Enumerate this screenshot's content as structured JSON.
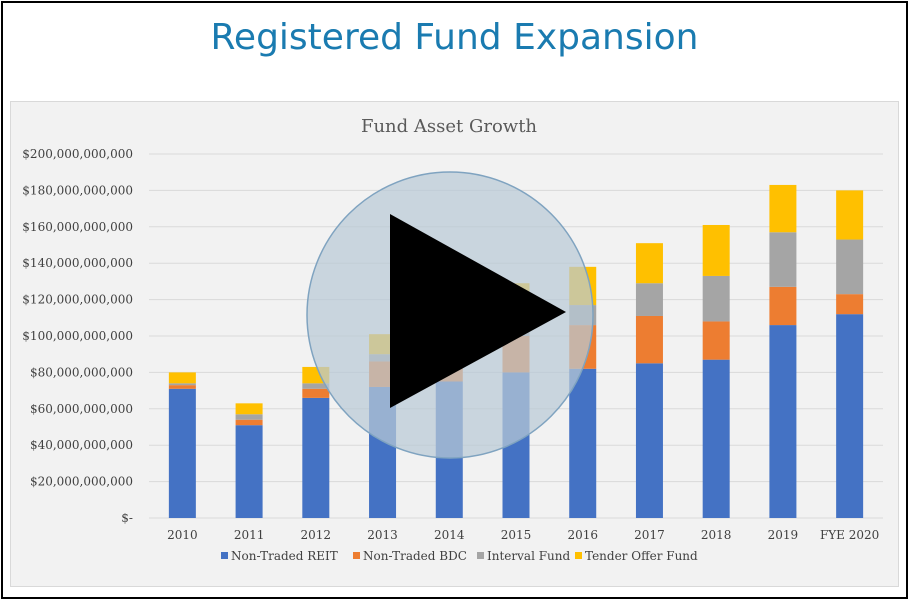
{
  "slide": {
    "title": "Registered Fund Expansion"
  },
  "chart_data": {
    "type": "bar",
    "stacked": true,
    "title": "Fund Asset Growth",
    "xlabel": "",
    "ylabel": "",
    "ylim": [
      0,
      200000000000
    ],
    "y_ticks": [
      0,
      20000000000,
      40000000000,
      60000000000,
      80000000000,
      100000000000,
      120000000000,
      140000000000,
      160000000000,
      180000000000,
      200000000000
    ],
    "y_tick_labels": [
      "$-",
      "$20,000,000,000",
      "$40,000,000,000",
      "$60,000,000,000",
      "$80,000,000,000",
      "$100,000,000,000",
      "$120,000,000,000",
      "$140,000,000,000",
      "$160,000,000,000",
      "$180,000,000,000",
      "$200,000,000,000"
    ],
    "categories": [
      "2010",
      "2011",
      "2012",
      "2013",
      "2014",
      "2015",
      "2016",
      "2017",
      "2018",
      "2019",
      "FYE 2020"
    ],
    "series": [
      {
        "name": "Non-Traded REIT",
        "color": "#4472c4",
        "values": [
          71000000000,
          51000000000,
          66000000000,
          72000000000,
          75000000000,
          80000000000,
          82000000000,
          85000000000,
          87000000000,
          106000000000,
          112000000000
        ]
      },
      {
        "name": "Non-Traded BDC",
        "color": "#ed7d31",
        "values": [
          2000000000,
          3000000000,
          5000000000,
          14000000000,
          15000000000,
          20000000000,
          24000000000,
          26000000000,
          21000000000,
          21000000000,
          11000000000
        ]
      },
      {
        "name": "Interval Fund",
        "color": "#a5a5a5",
        "values": [
          1000000000,
          3000000000,
          3000000000,
          4000000000,
          5000000000,
          6000000000,
          11000000000,
          18000000000,
          25000000000,
          30000000000,
          30000000000
        ]
      },
      {
        "name": "Tender Offer Fund",
        "color": "#ffc000",
        "values": [
          6000000000,
          6000000000,
          9000000000,
          11000000000,
          12000000000,
          23000000000,
          21000000000,
          22000000000,
          28000000000,
          26000000000,
          27000000000
        ]
      }
    ],
    "grid": true,
    "legend_position": "bottom"
  },
  "overlay": {
    "icon": "play-icon"
  }
}
